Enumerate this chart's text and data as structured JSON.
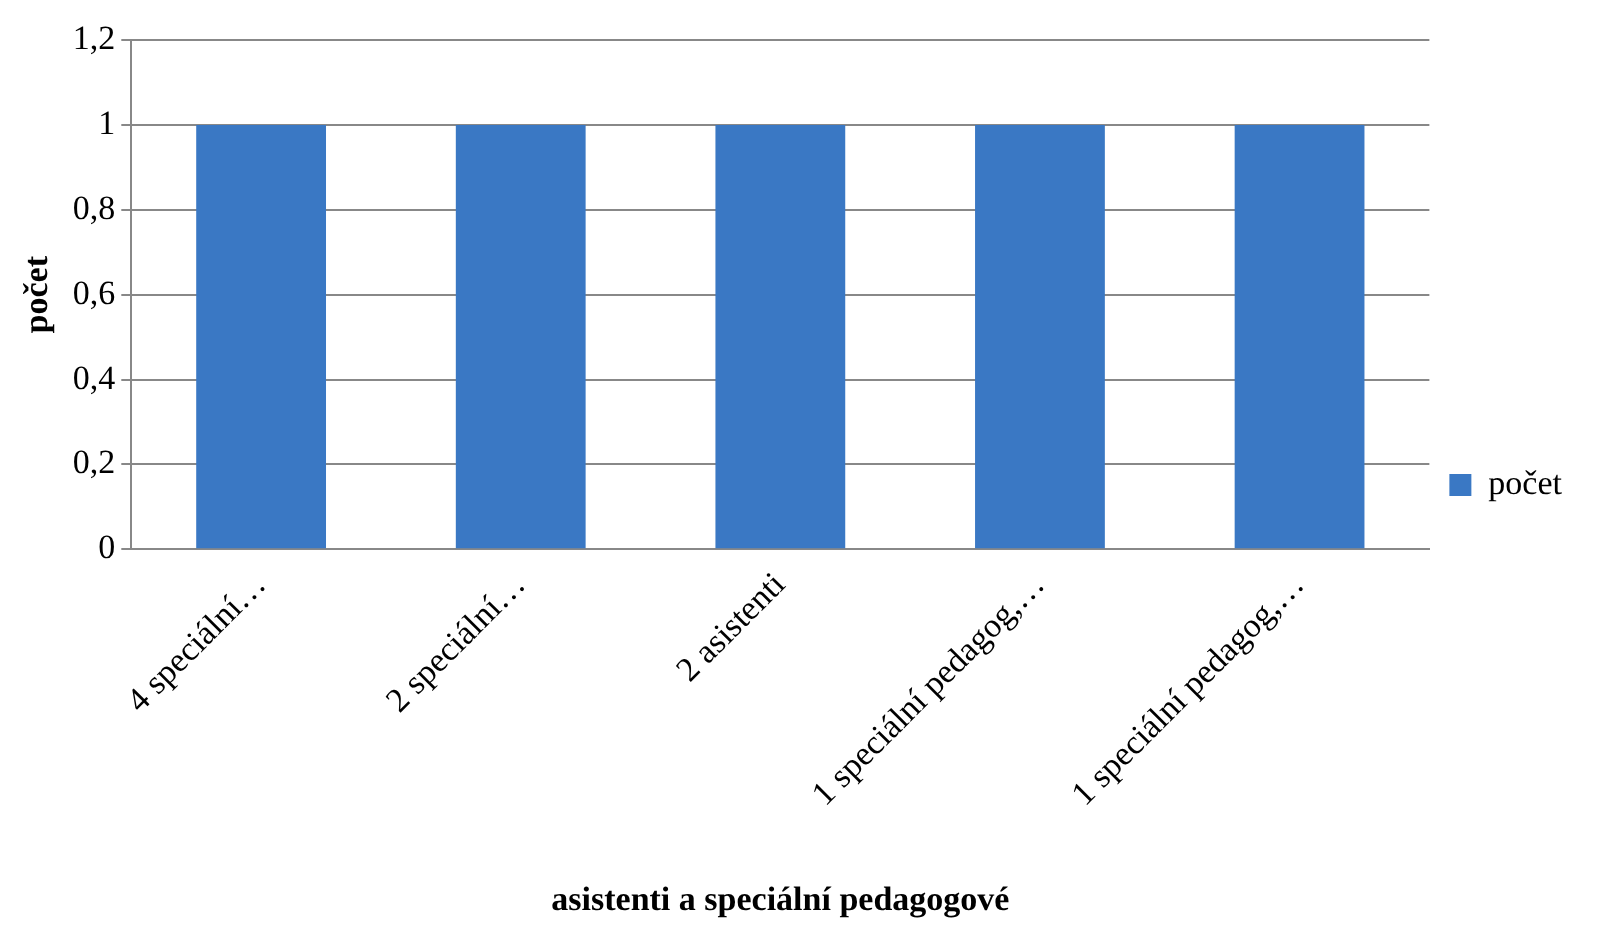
{
  "chart_data": {
    "type": "bar",
    "xlabel": "asistenti a speciální pedagogové",
    "ylabel": "počet",
    "categories": [
      "4 speciální…",
      "2 speciální…",
      "2 asistenti",
      "1 speciální pedagog,…",
      "1 speciální pedagog,…"
    ],
    "series": [
      {
        "name": "počet",
        "color": "#3a78c4",
        "values": [
          1,
          1,
          1,
          1,
          1
        ]
      }
    ],
    "ylim": [
      0,
      1.2
    ],
    "yticks": [
      0,
      {
        "value": 0.2,
        "label": "0,2"
      },
      {
        "value": 0.4,
        "label": "0,4"
      },
      {
        "value": 0.6,
        "label": "0,6"
      },
      {
        "value": 0.8,
        "label": "0,8"
      },
      1,
      {
        "value": 1.2,
        "label": "1,2"
      }
    ],
    "grid": "y",
    "legend": "right"
  }
}
